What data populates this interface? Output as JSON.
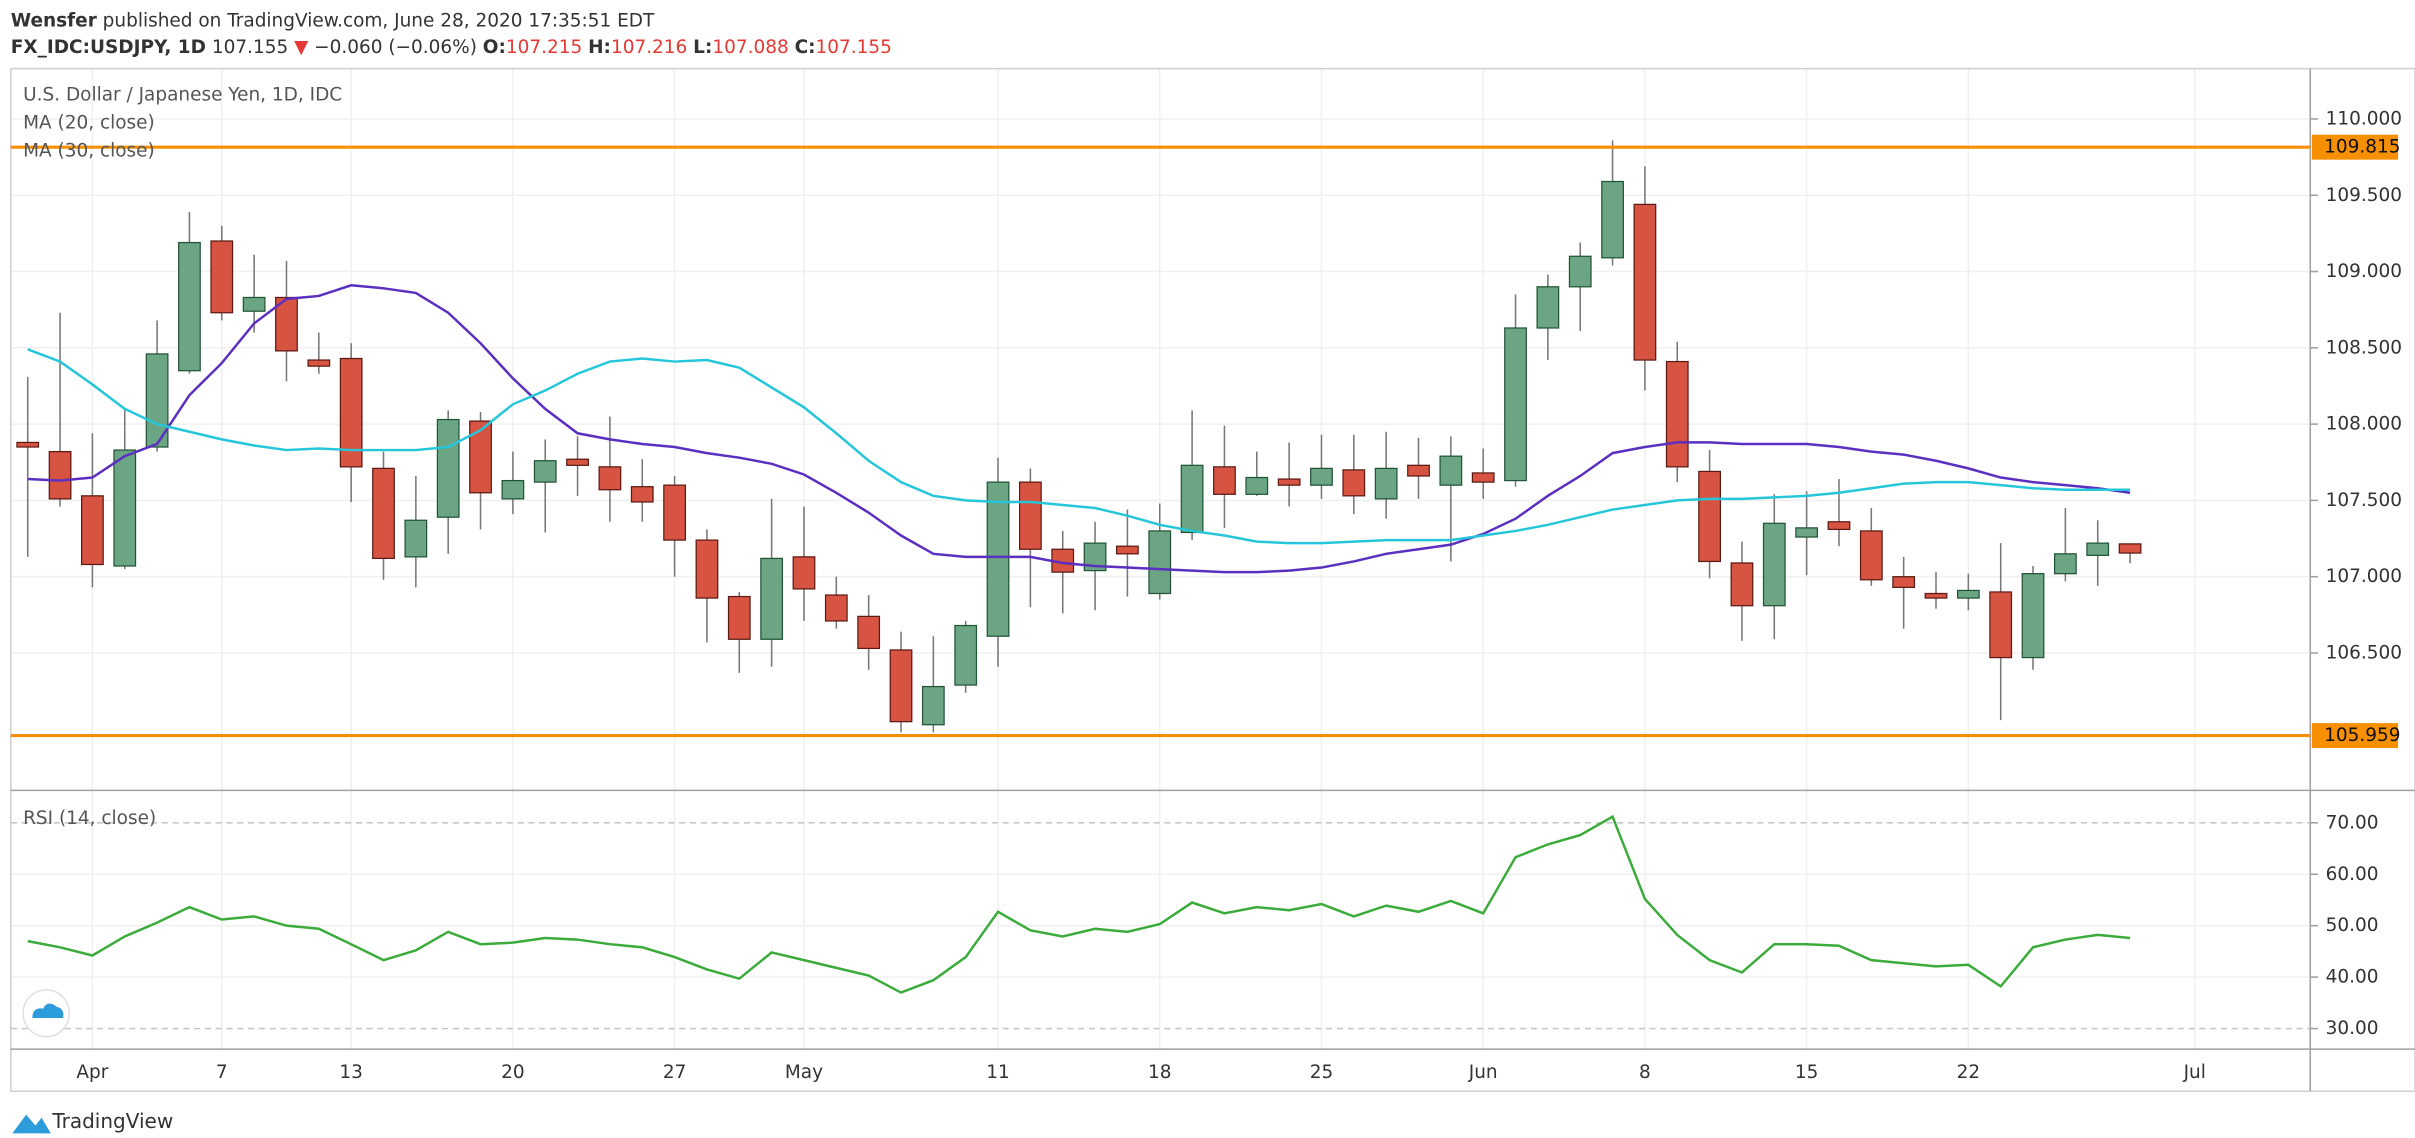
{
  "header": {
    "author": "Wensfer",
    "published": "published on TradingView.com, June 28, 2020 17:35:51 EDT",
    "symbol": "FX_IDC:USDJPY, 1D",
    "last": "107.155",
    "arrow": "▼",
    "change": "−0.060 (−0.06%)",
    "open_label": "O:",
    "open": "107.215",
    "high_label": "H:",
    "high": "107.216",
    "low_label": "L:",
    "low": "107.088",
    "close_label": "C:",
    "close": "107.155"
  },
  "chart_data": [
    {
      "type": "candlestick",
      "title": "U.S. Dollar / Japanese Yen, 1D, IDC",
      "categories": [
        null,
        null,
        "Apr",
        null,
        null,
        null,
        "7",
        null,
        null,
        null,
        "13",
        null,
        null,
        null,
        null,
        "20",
        null,
        null,
        null,
        null,
        "27",
        null,
        null,
        null,
        "May",
        null,
        null,
        null,
        null,
        null,
        "11",
        null,
        null,
        null,
        null,
        "18",
        null,
        null,
        null,
        null,
        "25",
        null,
        null,
        null,
        null,
        "Jun",
        null,
        null,
        null,
        null,
        "8",
        null,
        null,
        null,
        null,
        "15",
        null,
        null,
        null,
        null,
        "22",
        null,
        null,
        null,
        null,
        null,
        null,
        "Jul"
      ],
      "open": [
        107.88,
        107.82,
        107.53,
        107.07,
        107.85,
        108.35,
        109.2,
        108.74,
        108.83,
        108.42,
        108.43,
        107.71,
        107.13,
        107.39,
        108.02,
        107.51,
        107.62,
        107.77,
        107.72,
        107.59,
        107.6,
        107.24,
        106.87,
        106.59,
        107.13,
        106.88,
        106.74,
        106.52,
        106.03,
        106.29,
        106.61,
        107.62,
        107.18,
        107.04,
        107.2,
        106.89,
        107.29,
        107.72,
        107.54,
        107.64,
        107.6,
        107.7,
        107.51,
        107.73,
        107.6,
        107.68,
        107.63,
        108.63,
        108.9,
        109.09,
        109.44,
        108.41,
        107.69,
        107.09,
        106.81,
        107.26,
        107.36,
        107.3,
        107.0,
        106.89,
        106.86,
        106.9,
        106.47,
        107.02,
        107.14,
        107.215,
        null,
        null
      ],
      "high": [
        108.31,
        108.73,
        107.94,
        108.1,
        108.68,
        109.39,
        109.3,
        109.11,
        109.07,
        108.6,
        108.53,
        107.82,
        107.66,
        108.09,
        108.08,
        107.82,
        107.9,
        107.92,
        108.05,
        107.77,
        107.66,
        107.31,
        106.9,
        107.51,
        107.46,
        107.0,
        106.88,
        106.64,
        106.61,
        106.71,
        107.78,
        107.71,
        107.3,
        107.36,
        107.44,
        107.48,
        108.09,
        107.99,
        107.82,
        107.88,
        107.93,
        107.93,
        107.95,
        107.91,
        107.92,
        107.84,
        108.85,
        108.98,
        109.19,
        109.86,
        109.69,
        108.54,
        107.83,
        107.23,
        107.54,
        107.56,
        107.64,
        107.45,
        107.13,
        107.03,
        107.02,
        107.22,
        107.07,
        107.45,
        107.37,
        107.216,
        null,
        null
      ],
      "low": [
        107.13,
        107.46,
        106.93,
        107.05,
        107.82,
        108.33,
        108.68,
        108.6,
        108.28,
        108.33,
        107.49,
        106.98,
        106.93,
        107.15,
        107.31,
        107.41,
        107.29,
        107.53,
        107.36,
        107.36,
        107.0,
        106.57,
        106.37,
        106.41,
        106.71,
        106.66,
        106.39,
        105.98,
        105.98,
        106.24,
        106.41,
        106.8,
        106.76,
        106.78,
        106.87,
        106.85,
        107.24,
        107.32,
        107.53,
        107.46,
        107.51,
        107.41,
        107.38,
        107.51,
        107.1,
        107.51,
        107.59,
        108.42,
        108.61,
        109.04,
        108.22,
        107.62,
        106.99,
        106.58,
        106.59,
        107.01,
        107.2,
        106.94,
        106.66,
        106.79,
        106.78,
        106.06,
        106.39,
        106.97,
        106.94,
        107.088,
        null,
        null
      ],
      "close": [
        107.85,
        107.51,
        107.08,
        107.83,
        108.46,
        109.19,
        108.73,
        108.83,
        108.48,
        108.38,
        107.72,
        107.12,
        107.37,
        108.03,
        107.55,
        107.63,
        107.76,
        107.73,
        107.57,
        107.49,
        107.24,
        106.86,
        106.59,
        107.12,
        106.92,
        106.71,
        106.53,
        106.05,
        106.28,
        106.68,
        107.62,
        107.18,
        107.03,
        107.22,
        107.15,
        107.3,
        107.73,
        107.54,
        107.65,
        107.6,
        107.71,
        107.53,
        107.71,
        107.66,
        107.79,
        107.62,
        108.63,
        108.9,
        109.1,
        109.59,
        108.42,
        107.72,
        107.1,
        106.81,
        107.35,
        107.32,
        107.31,
        106.98,
        106.93,
        106.86,
        106.91,
        106.47,
        107.02,
        107.15,
        107.22,
        107.155,
        null,
        null
      ],
      "up_color": "#6ba583",
      "down_color": "#d75442",
      "series": [
        {
          "name": "MA (20, close)",
          "color": "#5b2fbf",
          "values": [
            107.64,
            107.63,
            107.65,
            107.79,
            107.87,
            108.19,
            108.4,
            108.66,
            108.82,
            108.84,
            108.91,
            108.89,
            108.86,
            108.73,
            108.53,
            108.3,
            108.1,
            107.94,
            107.9,
            107.87,
            107.85,
            107.81,
            107.78,
            107.74,
            107.67,
            107.55,
            107.42,
            107.27,
            107.15,
            107.13,
            107.13,
            107.13,
            107.09,
            107.07,
            107.06,
            107.05,
            107.04,
            107.03,
            107.03,
            107.04,
            107.06,
            107.1,
            107.15,
            107.18,
            107.21,
            107.28,
            107.38,
            107.53,
            107.66,
            107.81,
            107.85,
            107.88,
            107.88,
            107.87,
            107.87,
            107.87,
            107.85,
            107.82,
            107.8,
            107.76,
            107.71,
            107.65,
            107.62,
            107.6,
            107.58,
            107.55,
            null,
            null
          ]
        },
        {
          "name": "MA (30, close)",
          "color": "#26c6da",
          "values": [
            108.49,
            108.41,
            108.26,
            108.1,
            108.0,
            107.95,
            107.9,
            107.86,
            107.83,
            107.84,
            107.83,
            107.83,
            107.83,
            107.85,
            107.96,
            108.13,
            108.22,
            108.33,
            108.41,
            108.43,
            108.41,
            108.42,
            108.37,
            108.24,
            108.11,
            107.94,
            107.76,
            107.62,
            107.53,
            107.5,
            107.49,
            107.49,
            107.47,
            107.45,
            107.4,
            107.34,
            107.3,
            107.27,
            107.23,
            107.22,
            107.22,
            107.23,
            107.24,
            107.24,
            107.24,
            107.27,
            107.3,
            107.34,
            107.39,
            107.44,
            107.47,
            107.5,
            107.51,
            107.51,
            107.52,
            107.53,
            107.55,
            107.58,
            107.61,
            107.62,
            107.62,
            107.6,
            107.58,
            107.57,
            107.57,
            107.57,
            null,
            null
          ]
        }
      ],
      "levels": [
        109.815,
        105.959
      ],
      "level_color": "#f79000",
      "ylim": [
        105.61,
        110.33
      ],
      "yticks": [
        {
          "value": 106.5,
          "label": "106.500"
        },
        {
          "value": 107,
          "label": "107.000"
        },
        {
          "value": 107.5,
          "label": "107.500"
        },
        {
          "value": 108,
          "label": "108.000"
        },
        {
          "value": 108.5,
          "label": "108.500"
        },
        {
          "value": 109,
          "label": "109.000"
        },
        {
          "value": 109.5,
          "label": "109.500"
        },
        {
          "value": 110,
          "label": "110.000"
        }
      ],
      "grid": true
    },
    {
      "type": "line",
      "series": [
        {
          "name": "RSI (14, close)",
          "color": "#3bab3b",
          "values": [
            47.0,
            45.8,
            44.2,
            47.9,
            50.6,
            53.6,
            51.2,
            51.8,
            50.0,
            49.4,
            46.4,
            43.3,
            45.2,
            48.8,
            46.4,
            46.7,
            47.6,
            47.3,
            46.4,
            45.8,
            43.9,
            41.5,
            39.7,
            44.8,
            43.3,
            41.8,
            40.3,
            37.0,
            39.4,
            43.9,
            52.7,
            49.1,
            47.9,
            49.4,
            48.8,
            50.3,
            54.5,
            52.4,
            53.6,
            53.0,
            54.2,
            51.8,
            53.9,
            52.7,
            54.8,
            52.4,
            63.3,
            65.8,
            67.6,
            71.2,
            55.2,
            48.2,
            43.3,
            40.9,
            46.4,
            46.4,
            46.1,
            43.3,
            42.7,
            42.1,
            42.4,
            38.2,
            45.8,
            47.3,
            48.2,
            47.6,
            null,
            null
          ]
        }
      ],
      "ylim": [
        26,
        76
      ],
      "yticks": [
        {
          "value": 30,
          "label": "30.00"
        },
        {
          "value": 40,
          "label": "40.00"
        },
        {
          "value": 50,
          "label": "50.00"
        },
        {
          "value": 60,
          "label": "60.00"
        },
        {
          "value": 70,
          "label": "70.00"
        }
      ],
      "grid": true
    }
  ],
  "footer": {
    "brand": "TradingView"
  }
}
